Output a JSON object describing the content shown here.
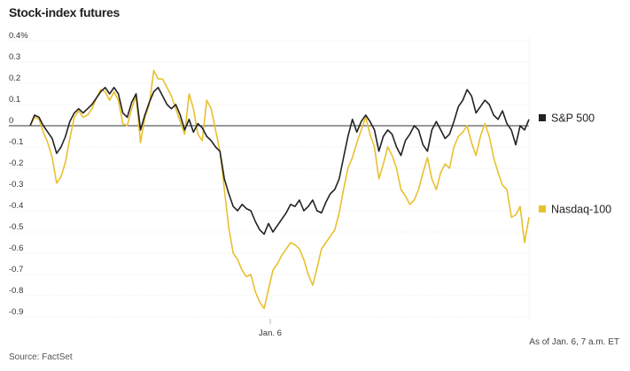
{
  "chart_data": {
    "type": "line",
    "title": "Stock-index futures",
    "source": "Source: FactSet",
    "note": "As of Jan. 6, 7 a.m. ET",
    "x_tick_label": "Jan. 6",
    "ylim": [
      -0.9,
      0.4
    ],
    "y_ticks": [
      {
        "v": 0.4,
        "label": "0.4%"
      },
      {
        "v": 0.3,
        "label": "0.3"
      },
      {
        "v": 0.2,
        "label": "0.2"
      },
      {
        "v": 0.1,
        "label": "0.1"
      },
      {
        "v": 0.0,
        "label": "0"
      },
      {
        "v": -0.1,
        "label": "-0.1"
      },
      {
        "v": -0.2,
        "label": "-0.2"
      },
      {
        "v": -0.3,
        "label": "-0.3"
      },
      {
        "v": -0.4,
        "label": "-0.4"
      },
      {
        "v": -0.5,
        "label": "-0.5"
      },
      {
        "v": -0.6,
        "label": "-0.6"
      },
      {
        "v": -0.7,
        "label": "-0.7"
      },
      {
        "v": -0.8,
        "label": "-0.8"
      },
      {
        "v": -0.9,
        "label": "-0.9"
      }
    ],
    "series": [
      {
        "name": "S&P 500",
        "color": "#222222",
        "values": [
          0.0,
          0.05,
          0.04,
          0.0,
          -0.03,
          -0.06,
          -0.13,
          -0.1,
          -0.05,
          0.02,
          0.06,
          0.08,
          0.06,
          0.08,
          0.1,
          0.13,
          0.16,
          0.18,
          0.15,
          0.18,
          0.15,
          0.06,
          0.04,
          0.11,
          0.15,
          -0.02,
          0.05,
          0.11,
          0.16,
          0.18,
          0.14,
          0.1,
          0.08,
          0.1,
          0.05,
          -0.02,
          0.03,
          -0.03,
          0.01,
          -0.01,
          -0.05,
          -0.07,
          -0.1,
          -0.12,
          -0.25,
          -0.32,
          -0.38,
          -0.4,
          -0.37,
          -0.39,
          -0.4,
          -0.45,
          -0.49,
          -0.51,
          -0.46,
          -0.5,
          -0.47,
          -0.44,
          -0.41,
          -0.37,
          -0.38,
          -0.35,
          -0.4,
          -0.38,
          -0.35,
          -0.4,
          -0.41,
          -0.36,
          -0.32,
          -0.3,
          -0.25,
          -0.15,
          -0.05,
          0.03,
          -0.03,
          0.02,
          0.05,
          0.02,
          -0.02,
          -0.12,
          -0.05,
          -0.02,
          -0.04,
          -0.1,
          -0.14,
          -0.07,
          -0.04,
          0.0,
          -0.02,
          -0.09,
          -0.12,
          -0.02,
          0.02,
          -0.02,
          -0.06,
          -0.04,
          0.02,
          0.09,
          0.12,
          0.17,
          0.14,
          0.06,
          0.09,
          0.12,
          0.1,
          0.05,
          0.03,
          0.07,
          0.01,
          -0.02,
          -0.09,
          0.0,
          -0.02,
          0.03
        ]
      },
      {
        "name": "Nasdaq-100",
        "color": "#e8c02e",
        "values": [
          0.0,
          0.04,
          0.03,
          -0.03,
          -0.08,
          -0.15,
          -0.27,
          -0.24,
          -0.17,
          -0.06,
          0.04,
          0.07,
          0.04,
          0.05,
          0.08,
          0.13,
          0.17,
          0.16,
          0.12,
          0.16,
          0.12,
          0.01,
          0.0,
          0.08,
          0.14,
          -0.08,
          0.04,
          0.1,
          0.26,
          0.22,
          0.22,
          0.18,
          0.14,
          0.08,
          0.02,
          -0.04,
          0.15,
          0.08,
          -0.04,
          -0.07,
          0.12,
          0.08,
          -0.02,
          -0.12,
          -0.3,
          -0.48,
          -0.6,
          -0.63,
          -0.68,
          -0.71,
          -0.7,
          -0.78,
          -0.83,
          -0.86,
          -0.77,
          -0.68,
          -0.65,
          -0.61,
          -0.58,
          -0.55,
          -0.56,
          -0.58,
          -0.63,
          -0.7,
          -0.75,
          -0.67,
          -0.58,
          -0.55,
          -0.52,
          -0.49,
          -0.41,
          -0.3,
          -0.2,
          -0.15,
          -0.08,
          -0.02,
          0.04,
          -0.04,
          -0.1,
          -0.25,
          -0.18,
          -0.1,
          -0.14,
          -0.2,
          -0.3,
          -0.33,
          -0.37,
          -0.35,
          -0.3,
          -0.22,
          -0.15,
          -0.25,
          -0.3,
          -0.22,
          -0.18,
          -0.2,
          -0.1,
          -0.05,
          -0.03,
          0.0,
          -0.08,
          -0.14,
          -0.05,
          0.01,
          -0.05,
          -0.15,
          -0.22,
          -0.28,
          -0.3,
          -0.43,
          -0.42,
          -0.38,
          -0.55,
          -0.43
        ]
      }
    ]
  }
}
